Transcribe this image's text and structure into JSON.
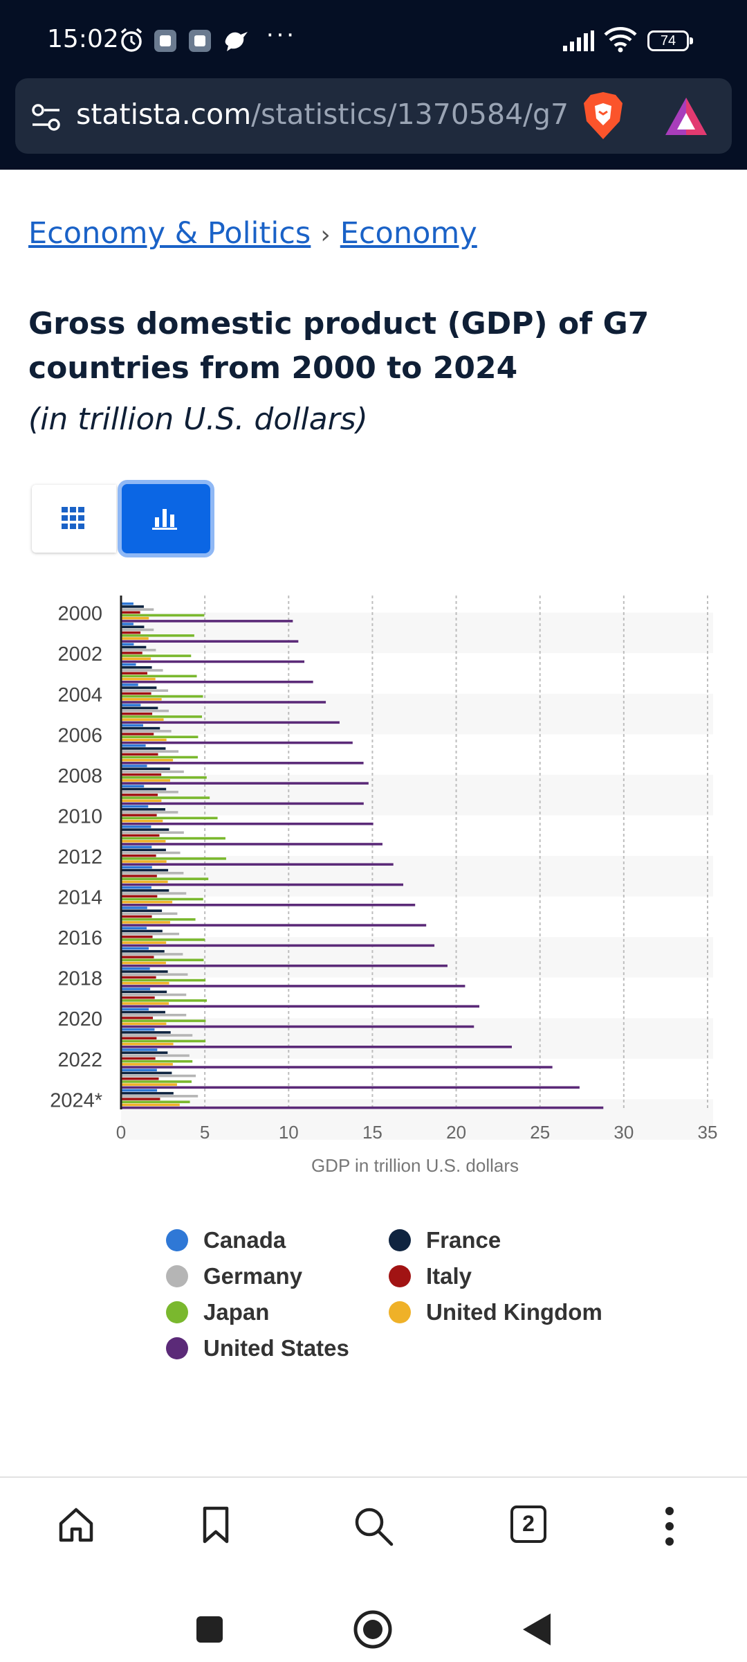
{
  "status": {
    "time": "15:02",
    "battery": "74",
    "more": "···"
  },
  "browser": {
    "url_host": "statista.com",
    "url_path": "/statistics/1370584/g7",
    "tab_count": "2"
  },
  "breadcrumb": {
    "item1": "Economy & Politics",
    "separator": "›",
    "item2": "Economy"
  },
  "page": {
    "title": "Gross domestic product (GDP) of G7 countries from 2000 to 2024",
    "subtitle": "(in trillion U.S. dollars)"
  },
  "view_toggle": {
    "table_icon": "grid-icon",
    "chart_icon": "bar-chart-icon",
    "active": "chart"
  },
  "chart_data": {
    "type": "bar",
    "orientation": "horizontal",
    "categories": [
      "2000",
      "2001",
      "2002",
      "2003",
      "2004",
      "2005",
      "2006",
      "2007",
      "2008",
      "2009",
      "2010",
      "2011",
      "2012",
      "2013",
      "2014",
      "2015",
      "2016",
      "2017",
      "2018",
      "2019",
      "2020",
      "2021",
      "2022",
      "2023",
      "2024*"
    ],
    "tick_labels": [
      "2000",
      "2002",
      "2004",
      "2006",
      "2008",
      "2010",
      "2012",
      "2014",
      "2016",
      "2018",
      "2020",
      "2022",
      "2024*"
    ],
    "xlabel": "GDP in trillion U.S. dollars",
    "xlim": [
      0,
      35
    ],
    "xticks": [
      0,
      5,
      10,
      15,
      20,
      25,
      30,
      35
    ],
    "grid": true,
    "legend_position": "bottom",
    "series": [
      {
        "name": "Canada",
        "color": "#2f78d6",
        "values": [
          0.74,
          0.74,
          0.76,
          0.89,
          1.02,
          1.17,
          1.32,
          1.47,
          1.55,
          1.37,
          1.62,
          1.79,
          1.83,
          1.85,
          1.81,
          1.56,
          1.53,
          1.65,
          1.72,
          1.74,
          1.65,
          2.0,
          2.16,
          2.14,
          2.15
        ]
      },
      {
        "name": "France",
        "color": "#0f2440",
        "values": [
          1.36,
          1.38,
          1.5,
          1.84,
          2.12,
          2.2,
          2.32,
          2.66,
          2.92,
          2.69,
          2.64,
          2.86,
          2.68,
          2.81,
          2.86,
          2.44,
          2.47,
          2.59,
          2.79,
          2.73,
          2.64,
          2.96,
          2.78,
          3.03,
          3.13
        ]
      },
      {
        "name": "Germany",
        "color": "#b5b5b5",
        "values": [
          1.95,
          1.95,
          2.08,
          2.5,
          2.81,
          2.85,
          3.0,
          3.43,
          3.75,
          3.42,
          3.4,
          3.75,
          3.53,
          3.73,
          3.89,
          3.36,
          3.47,
          3.69,
          3.98,
          3.89,
          3.89,
          4.26,
          4.08,
          4.46,
          4.59
        ]
      },
      {
        "name": "Italy",
        "color": "#a11313",
        "values": [
          1.14,
          1.16,
          1.27,
          1.57,
          1.8,
          1.86,
          1.95,
          2.21,
          2.4,
          2.19,
          2.13,
          2.29,
          2.09,
          2.14,
          2.16,
          1.84,
          1.88,
          1.96,
          2.09,
          2.01,
          1.9,
          2.12,
          2.05,
          2.25,
          2.33
        ]
      },
      {
        "name": "Japan",
        "color": "#7ab82e",
        "values": [
          4.97,
          4.37,
          4.18,
          4.52,
          4.89,
          4.83,
          4.6,
          4.58,
          5.11,
          5.29,
          5.76,
          6.23,
          6.27,
          5.21,
          4.9,
          4.44,
          5.0,
          4.93,
          5.04,
          5.12,
          5.05,
          5.04,
          4.26,
          4.21,
          4.11
        ]
      },
      {
        "name": "United Kingdom",
        "color": "#efb128",
        "values": [
          1.66,
          1.64,
          1.78,
          2.05,
          2.42,
          2.54,
          2.71,
          3.1,
          2.93,
          2.41,
          2.49,
          2.66,
          2.71,
          2.79,
          3.06,
          2.93,
          2.69,
          2.68,
          2.87,
          2.85,
          2.7,
          3.12,
          3.09,
          3.34,
          3.5
        ]
      },
      {
        "name": "United States",
        "color": "#5b2a78",
        "values": [
          10.25,
          10.58,
          10.94,
          11.46,
          12.22,
          13.04,
          13.82,
          14.47,
          14.77,
          14.48,
          15.05,
          15.6,
          16.25,
          16.84,
          17.55,
          18.21,
          18.7,
          19.48,
          20.53,
          21.38,
          21.06,
          23.32,
          25.74,
          27.36,
          28.78
        ]
      }
    ]
  },
  "nav": {
    "home_icon": "home-icon",
    "bookmark_icon": "bookmark-icon",
    "search_icon": "search-icon",
    "tabs_icon": "tabs-icon",
    "menu_icon": "more-vertical-icon"
  }
}
